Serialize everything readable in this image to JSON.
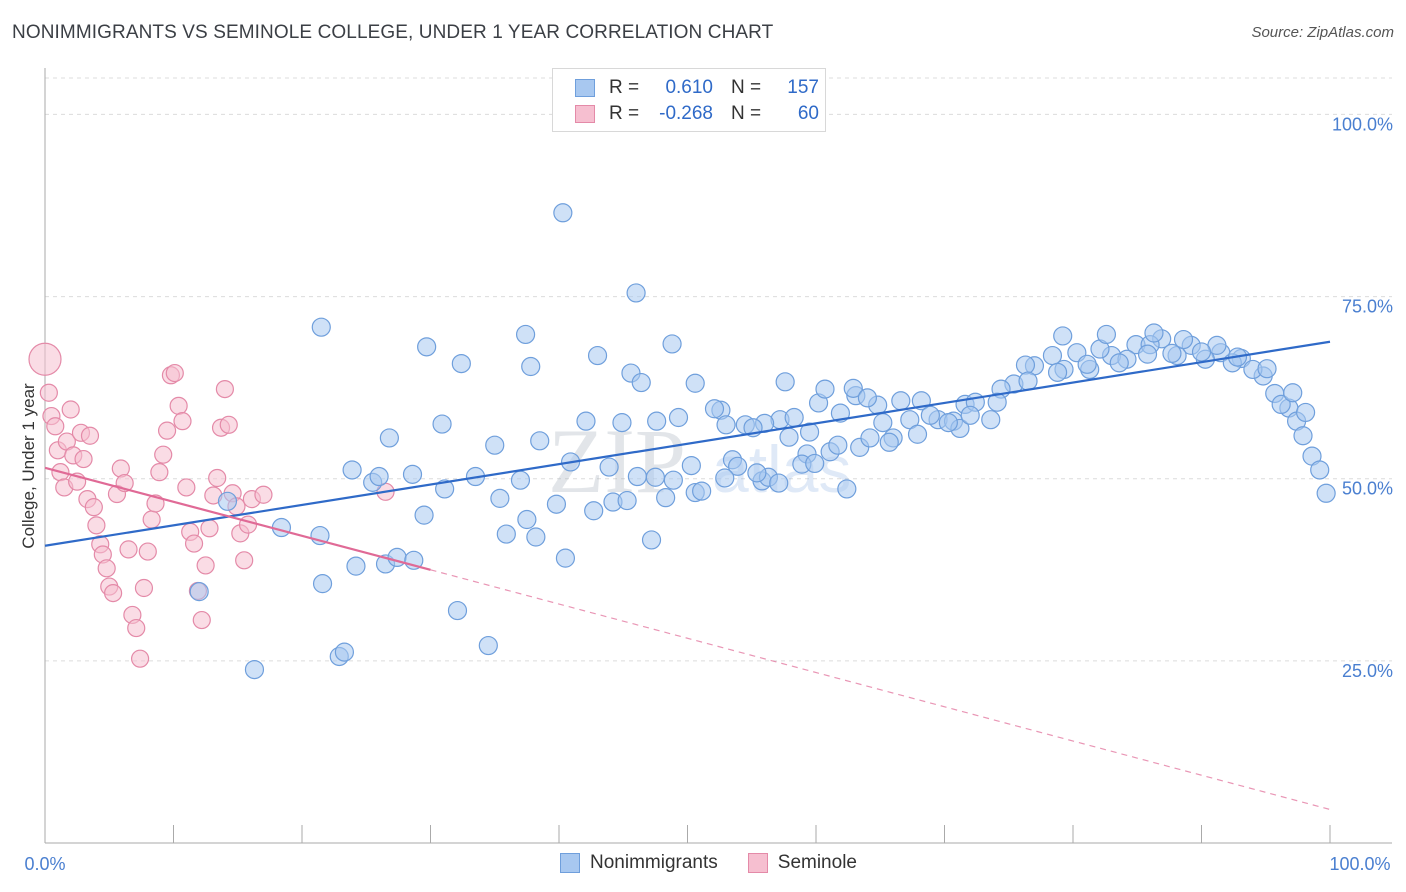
{
  "header": {
    "title": "NONIMMIGRANTS VS SEMINOLE COLLEGE, UNDER 1 YEAR CORRELATION CHART",
    "source": "Source: ZipAtlas.com"
  },
  "watermark": {
    "zip": "ZIP",
    "atlas": "atlas"
  },
  "legend": {
    "rows": [
      {
        "r_label": "R =",
        "r_value": "0.610",
        "n_label": "N =",
        "n_value": "157",
        "color": "#a8c8f0",
        "border": "#6f9fdc"
      },
      {
        "r_label": "R =",
        "r_value": "-0.268",
        "n_label": "N =",
        "n_value": "60",
        "color": "#f6bfd0",
        "border": "#e48aa8"
      }
    ]
  },
  "bottom_legend": {
    "items": [
      {
        "label": "Nonimmigrants",
        "color": "#a8c8f0",
        "border": "#6f9fdc"
      },
      {
        "label": "Seminole",
        "color": "#f6bfd0",
        "border": "#e48aa8"
      }
    ]
  },
  "chart_data": {
    "type": "scatter",
    "title": "NONIMMIGRANTS VS SEMINOLE COLLEGE, UNDER 1 YEAR CORRELATION CHART",
    "xlabel": "",
    "ylabel": "College, Under 1 year",
    "xlim": [
      0,
      100
    ],
    "ylim": [
      0,
      105
    ],
    "x_tick_labels": [
      "0.0%",
      "100.0%"
    ],
    "y_ticks": [
      25,
      50,
      75,
      100
    ],
    "y_tick_labels": [
      "25.0%",
      "50.0%",
      "75.0%",
      "100.0%"
    ],
    "grid": true,
    "colors": {
      "blue": "#6f9fdc",
      "blue_fill": "#a8c8f0",
      "pink": "#e48aa8",
      "pink_fill": "#f6bfd0",
      "blue_line": "#2f6ac8",
      "pink_line": "#e06a96"
    },
    "series": [
      {
        "name": "Nonimmigrants",
        "points": [
          [
            40.3,
            86.5
          ],
          [
            46.0,
            75.5
          ],
          [
            21.5,
            70.8
          ],
          [
            37.4,
            69.8
          ],
          [
            29.7,
            68.1
          ],
          [
            32.4,
            65.8
          ],
          [
            37.8,
            65.4
          ],
          [
            43.0,
            66.9
          ],
          [
            48.8,
            68.5
          ],
          [
            45.6,
            64.5
          ],
          [
            46.4,
            63.2
          ],
          [
            50.6,
            63.1
          ],
          [
            57.6,
            63.3
          ],
          [
            26.8,
            55.6
          ],
          [
            30.9,
            57.5
          ],
          [
            35.0,
            54.6
          ],
          [
            38.5,
            55.2
          ],
          [
            42.1,
            57.9
          ],
          [
            44.9,
            57.7
          ],
          [
            47.6,
            57.9
          ],
          [
            49.3,
            58.4
          ],
          [
            52.6,
            59.4
          ],
          [
            54.5,
            57.4
          ],
          [
            57.2,
            58.1
          ],
          [
            60.2,
            60.4
          ],
          [
            63.1,
            61.4
          ],
          [
            64.8,
            60.1
          ],
          [
            66.6,
            60.7
          ],
          [
            68.2,
            60.7
          ],
          [
            69.5,
            58.1
          ],
          [
            71.6,
            60.2
          ],
          [
            73.6,
            58.1
          ],
          [
            75.4,
            63.0
          ],
          [
            77.0,
            65.5
          ],
          [
            79.3,
            65.0
          ],
          [
            81.3,
            65.0
          ],
          [
            83.0,
            66.9
          ],
          [
            84.9,
            68.4
          ],
          [
            86.9,
            69.2
          ],
          [
            89.2,
            68.3
          ],
          [
            91.5,
            67.3
          ],
          [
            93.1,
            66.5
          ],
          [
            94.8,
            64.1
          ],
          [
            95.7,
            61.7
          ],
          [
            96.8,
            59.7
          ],
          [
            97.4,
            57.9
          ],
          [
            97.9,
            55.9
          ],
          [
            98.6,
            53.1
          ],
          [
            99.2,
            51.2
          ],
          [
            99.7,
            48.0
          ],
          [
            60.7,
            62.3
          ],
          [
            62.9,
            62.4
          ],
          [
            65.2,
            57.7
          ],
          [
            67.3,
            58.1
          ],
          [
            70.7,
            57.9
          ],
          [
            72.4,
            60.5
          ],
          [
            74.4,
            62.3
          ],
          [
            76.3,
            65.6
          ],
          [
            78.4,
            66.9
          ],
          [
            80.3,
            67.3
          ],
          [
            82.1,
            67.8
          ],
          [
            84.2,
            66.4
          ],
          [
            86.0,
            68.4
          ],
          [
            88.1,
            66.9
          ],
          [
            90.3,
            66.4
          ],
          [
            92.4,
            65.9
          ],
          [
            94.0,
            65.0
          ],
          [
            96.2,
            60.2
          ],
          [
            79.2,
            69.6
          ],
          [
            82.6,
            69.8
          ],
          [
            86.3,
            70.0
          ],
          [
            88.6,
            69.1
          ],
          [
            91.2,
            68.3
          ],
          [
            56.0,
            57.6
          ],
          [
            58.3,
            58.4
          ],
          [
            61.9,
            59.0
          ],
          [
            64.0,
            61.1
          ],
          [
            66.0,
            55.6
          ],
          [
            68.9,
            58.7
          ],
          [
            71.2,
            56.9
          ],
          [
            52.1,
            59.6
          ],
          [
            53.0,
            57.4
          ],
          [
            55.1,
            57.0
          ],
          [
            57.9,
            55.7
          ],
          [
            59.5,
            56.4
          ],
          [
            37.0,
            49.8
          ],
          [
            40.9,
            52.3
          ],
          [
            43.9,
            51.6
          ],
          [
            48.9,
            49.8
          ],
          [
            50.6,
            48.1
          ],
          [
            53.5,
            52.6
          ],
          [
            55.8,
            49.7
          ],
          [
            59.3,
            53.4
          ],
          [
            62.4,
            48.6
          ],
          [
            28.6,
            50.6
          ],
          [
            25.5,
            49.5
          ],
          [
            23.9,
            51.2
          ],
          [
            21.4,
            42.2
          ],
          [
            18.4,
            43.3
          ],
          [
            14.2,
            46.9
          ],
          [
            12.0,
            34.5
          ],
          [
            16.3,
            23.8
          ],
          [
            22.9,
            25.6
          ],
          [
            23.3,
            26.2
          ],
          [
            21.6,
            35.6
          ],
          [
            24.2,
            38.0
          ],
          [
            26.5,
            38.3
          ],
          [
            27.4,
            39.2
          ],
          [
            28.7,
            38.8
          ],
          [
            32.1,
            31.9
          ],
          [
            34.5,
            27.1
          ],
          [
            40.5,
            39.1
          ],
          [
            47.2,
            41.6
          ],
          [
            35.4,
            47.3
          ],
          [
            37.5,
            44.4
          ],
          [
            44.2,
            46.8
          ],
          [
            46.1,
            50.3
          ],
          [
            47.5,
            50.2
          ],
          [
            50.3,
            51.8
          ],
          [
            53.9,
            51.7
          ],
          [
            56.3,
            50.2
          ],
          [
            58.9,
            52.0
          ],
          [
            61.1,
            53.7
          ],
          [
            63.4,
            54.3
          ],
          [
            65.7,
            55.0
          ],
          [
            67.9,
            56.1
          ],
          [
            70.3,
            57.7
          ],
          [
            72.0,
            58.7
          ],
          [
            74.1,
            60.5
          ],
          [
            76.5,
            63.4
          ],
          [
            78.8,
            64.6
          ],
          [
            81.1,
            65.7
          ],
          [
            83.6,
            65.9
          ],
          [
            85.8,
            67.1
          ],
          [
            87.7,
            67.2
          ],
          [
            90.0,
            67.4
          ],
          [
            92.8,
            66.7
          ],
          [
            95.1,
            65.1
          ],
          [
            97.1,
            61.8
          ],
          [
            98.1,
            59.1
          ],
          [
            26.0,
            50.3
          ],
          [
            29.5,
            45.0
          ],
          [
            31.1,
            48.6
          ],
          [
            33.5,
            50.3
          ],
          [
            35.9,
            42.4
          ],
          [
            38.2,
            42.0
          ],
          [
            39.8,
            46.5
          ],
          [
            42.7,
            45.6
          ],
          [
            45.3,
            47.0
          ],
          [
            48.3,
            47.4
          ],
          [
            51.1,
            48.3
          ],
          [
            52.9,
            50.1
          ],
          [
            55.4,
            50.8
          ],
          [
            57.1,
            49.4
          ],
          [
            59.9,
            52.1
          ],
          [
            61.7,
            54.6
          ],
          [
            64.2,
            55.6
          ]
        ]
      },
      {
        "name": "Seminole",
        "points": [
          [
            0.0,
            66.4
          ],
          [
            0.3,
            61.8
          ],
          [
            0.5,
            58.6
          ],
          [
            0.8,
            57.2
          ],
          [
            1.0,
            53.9
          ],
          [
            1.2,
            50.9
          ],
          [
            1.5,
            48.8
          ],
          [
            1.7,
            55.1
          ],
          [
            2.0,
            59.5
          ],
          [
            2.2,
            53.2
          ],
          [
            2.5,
            49.6
          ],
          [
            2.8,
            56.3
          ],
          [
            3.0,
            52.7
          ],
          [
            3.3,
            47.2
          ],
          [
            3.5,
            55.9
          ],
          [
            3.8,
            46.1
          ],
          [
            4.0,
            43.6
          ],
          [
            4.3,
            41.0
          ],
          [
            4.5,
            39.6
          ],
          [
            4.8,
            37.7
          ],
          [
            5.0,
            35.2
          ],
          [
            5.3,
            34.3
          ],
          [
            5.6,
            47.9
          ],
          [
            5.9,
            51.4
          ],
          [
            6.2,
            49.4
          ],
          [
            6.5,
            40.3
          ],
          [
            6.8,
            31.3
          ],
          [
            7.1,
            29.5
          ],
          [
            7.4,
            25.3
          ],
          [
            7.7,
            35.0
          ],
          [
            8.0,
            40.0
          ],
          [
            8.3,
            44.4
          ],
          [
            8.6,
            46.6
          ],
          [
            8.9,
            50.9
          ],
          [
            9.2,
            53.3
          ],
          [
            9.5,
            56.6
          ],
          [
            9.8,
            64.2
          ],
          [
            10.1,
            64.5
          ],
          [
            10.4,
            60.0
          ],
          [
            10.7,
            57.9
          ],
          [
            11.0,
            48.8
          ],
          [
            11.3,
            42.7
          ],
          [
            11.6,
            41.1
          ],
          [
            11.9,
            34.6
          ],
          [
            12.2,
            30.6
          ],
          [
            12.5,
            38.1
          ],
          [
            12.8,
            43.2
          ],
          [
            13.1,
            47.7
          ],
          [
            13.4,
            50.1
          ],
          [
            13.7,
            57.0
          ],
          [
            14.0,
            62.3
          ],
          [
            14.3,
            57.4
          ],
          [
            14.6,
            48.0
          ],
          [
            14.9,
            46.2
          ],
          [
            15.2,
            42.5
          ],
          [
            15.5,
            38.8
          ],
          [
            15.8,
            43.7
          ],
          [
            16.1,
            47.2
          ],
          [
            17.0,
            47.8
          ],
          [
            26.5,
            48.2
          ]
        ]
      }
    ],
    "trend_lines": [
      {
        "series": "Nonimmigrants",
        "x": [
          0,
          100
        ],
        "y": [
          40.8,
          68.8
        ]
      },
      {
        "series": "Seminole",
        "x": [
          0,
          30
        ],
        "y": [
          51.5,
          37.5
        ],
        "extended_x": [
          30,
          100
        ],
        "extended_y": [
          37.5,
          4.6
        ]
      }
    ]
  }
}
